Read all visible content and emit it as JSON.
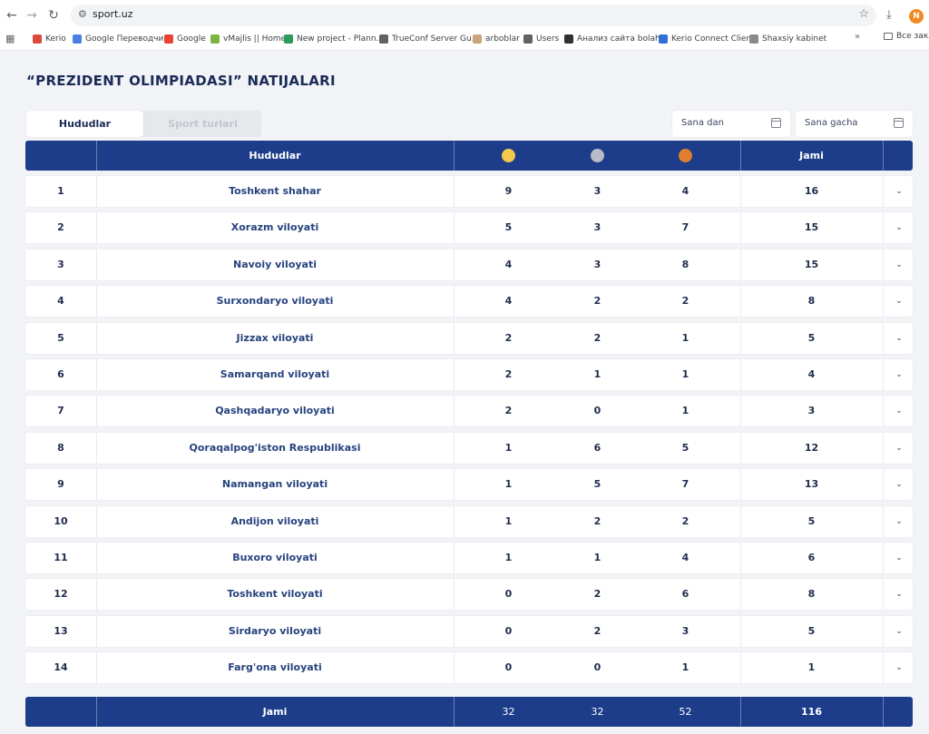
{
  "browser": {
    "url": "sport.uz",
    "profile_initial": "N",
    "bookmarks": [
      {
        "label": "Kerio",
        "color": "#d84a3a"
      },
      {
        "label": "Google Переводчик",
        "color": "#4a7fe0"
      },
      {
        "label": "Google",
        "color": "#ea4335"
      },
      {
        "label": "vMajlis || Home",
        "color": "#7cb342"
      },
      {
        "label": "New project - Plann...",
        "color": "#2e9b5e"
      },
      {
        "label": "TrueConf Server Gu...",
        "color": "#5f6368"
      },
      {
        "label": "arboblar",
        "color": "#caa57c"
      },
      {
        "label": "Users",
        "color": "#5f6368"
      },
      {
        "label": "Анализ сайта bolah...",
        "color": "#303030"
      },
      {
        "label": "Kerio Connect Client",
        "color": "#2f6fd6"
      },
      {
        "label": "Shaxsiy kabinet",
        "color": "#8a8a8a"
      }
    ],
    "more_label": "»",
    "folder_label": "Все закл"
  },
  "page": {
    "title": "“PREZIDENT OLIMPIADASI” NATIJALARI",
    "tabs": [
      {
        "label": "Hududlar",
        "active": true
      },
      {
        "label": "Sport turlari",
        "active": false
      }
    ],
    "date_from_placeholder": "Sana dan",
    "date_to_placeholder": "Sana gacha"
  },
  "table": {
    "header": {
      "region": "Hududlar",
      "total": "Jami",
      "medal_colors": {
        "gold": "#f2c94c",
        "silver": "#b7bcc6",
        "bronze": "#e07f2f"
      }
    },
    "rows": [
      {
        "rank": "1",
        "region": "Toshkent shahar",
        "gold": "9",
        "silver": "3",
        "bronze": "4",
        "total": "16"
      },
      {
        "rank": "2",
        "region": "Xorazm viloyati",
        "gold": "5",
        "silver": "3",
        "bronze": "7",
        "total": "15"
      },
      {
        "rank": "3",
        "region": "Navoiy viloyati",
        "gold": "4",
        "silver": "3",
        "bronze": "8",
        "total": "15"
      },
      {
        "rank": "4",
        "region": "Surxondaryo viloyati",
        "gold": "4",
        "silver": "2",
        "bronze": "2",
        "total": "8"
      },
      {
        "rank": "5",
        "region": "Jizzax viloyati",
        "gold": "2",
        "silver": "2",
        "bronze": "1",
        "total": "5"
      },
      {
        "rank": "6",
        "region": "Samarqand viloyati",
        "gold": "2",
        "silver": "1",
        "bronze": "1",
        "total": "4"
      },
      {
        "rank": "7",
        "region": "Qashqadaryo viloyati",
        "gold": "2",
        "silver": "0",
        "bronze": "1",
        "total": "3"
      },
      {
        "rank": "8",
        "region": "Qoraqalpog'iston Respublikasi",
        "gold": "1",
        "silver": "6",
        "bronze": "5",
        "total": "12"
      },
      {
        "rank": "9",
        "region": "Namangan viloyati",
        "gold": "1",
        "silver": "5",
        "bronze": "7",
        "total": "13"
      },
      {
        "rank": "10",
        "region": "Andijon viloyati",
        "gold": "1",
        "silver": "2",
        "bronze": "2",
        "total": "5"
      },
      {
        "rank": "11",
        "region": "Buxoro viloyati",
        "gold": "1",
        "silver": "1",
        "bronze": "4",
        "total": "6"
      },
      {
        "rank": "12",
        "region": "Toshkent viloyati",
        "gold": "0",
        "silver": "2",
        "bronze": "6",
        "total": "8"
      },
      {
        "rank": "13",
        "region": "Sirdaryo viloyati",
        "gold": "0",
        "silver": "2",
        "bronze": "3",
        "total": "5"
      },
      {
        "rank": "14",
        "region": "Farg'ona viloyati",
        "gold": "0",
        "silver": "0",
        "bronze": "1",
        "total": "1"
      }
    ],
    "footer": {
      "label": "Jami",
      "gold": "32",
      "silver": "32",
      "bronze": "52",
      "total": "116"
    }
  }
}
